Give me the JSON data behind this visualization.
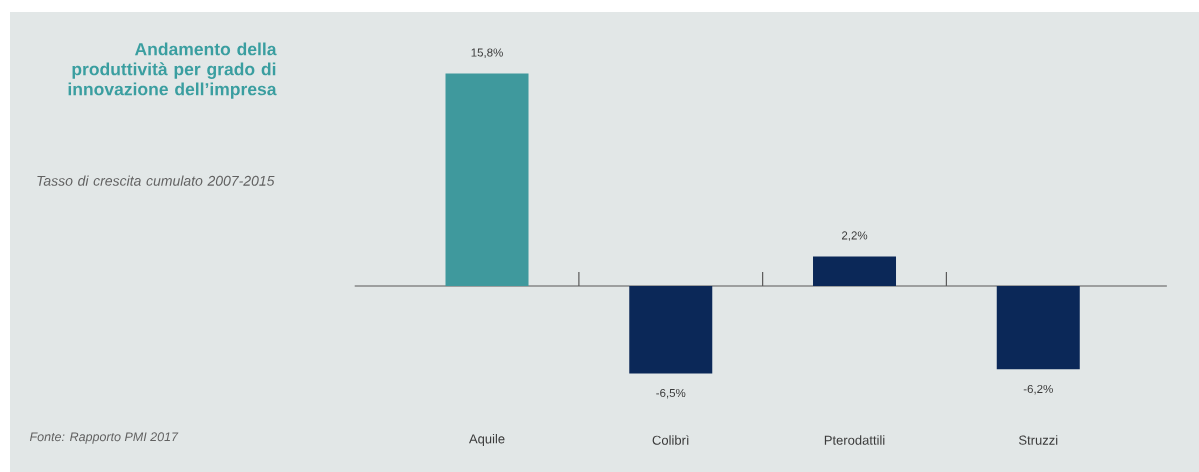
{
  "chart_data": {
    "type": "bar",
    "title": "Andamento della produttività per grado di innovazione dell’impresa",
    "subtitle": "Tasso di crescita cumulato 2007-2015",
    "categories": [
      "Aquile",
      "Colibrì",
      "Pterodattili",
      "Struzzi"
    ],
    "values": [
      15.8,
      -6.5,
      2.2,
      -6.2
    ],
    "value_labels": [
      "15,8%",
      "-6,5%",
      "2,2%",
      "-6,2%"
    ],
    "colors": [
      "#3f999d",
      "#0b2858",
      "#0b2858",
      "#0b2858"
    ],
    "annotations": [
      "Fonte: Rapporto PMI 2017"
    ]
  }
}
